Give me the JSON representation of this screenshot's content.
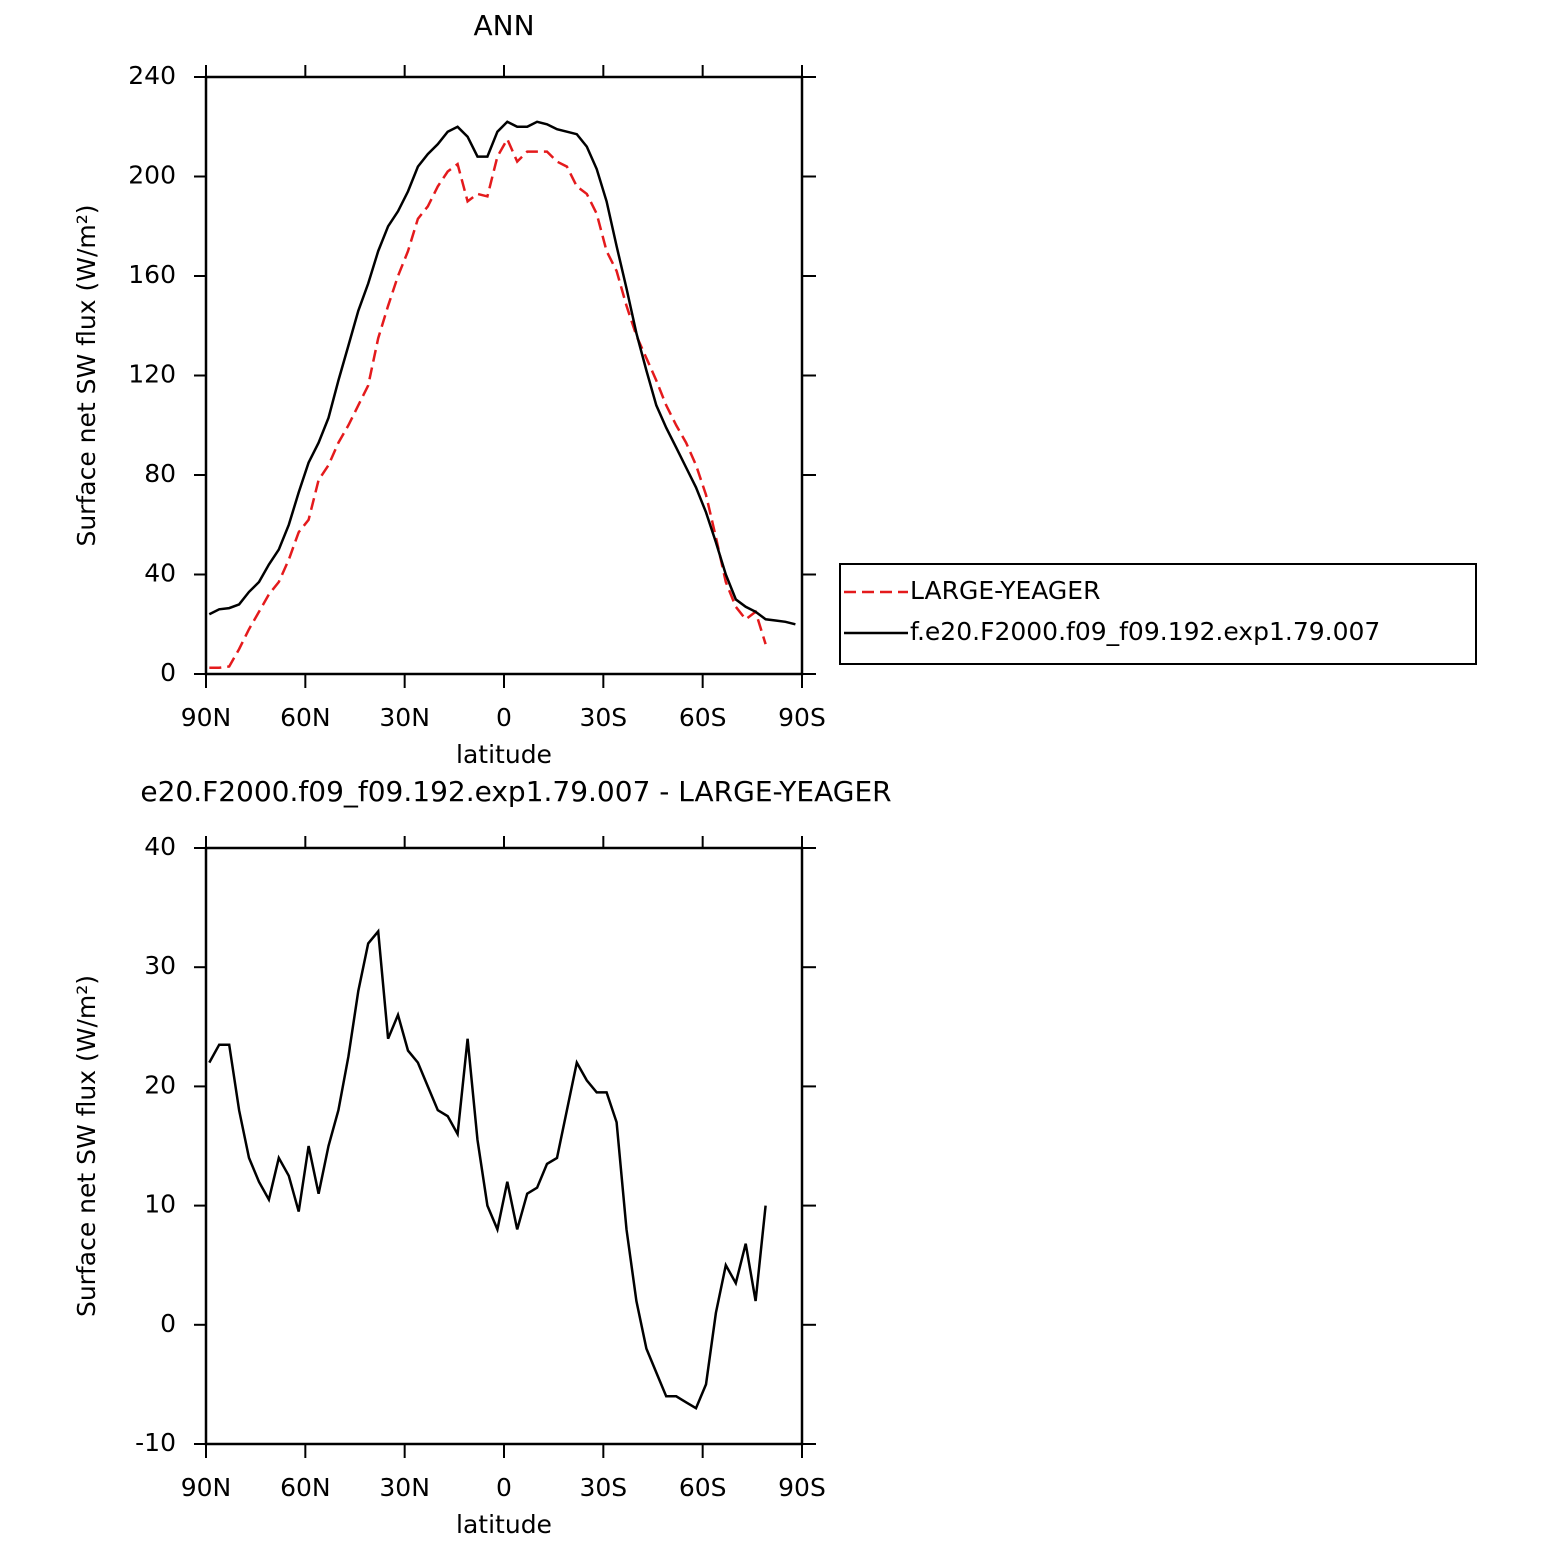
{
  "chart_data": [
    {
      "type": "line",
      "title": "ANN",
      "xlabel": "latitude",
      "ylabel": "Surface net SW flux (W/m²)",
      "x": [
        89,
        86,
        83,
        80,
        77,
        74,
        71,
        68,
        65,
        62,
        59,
        56,
        53,
        50,
        47,
        44,
        41,
        38,
        35,
        32,
        29,
        26,
        23,
        20,
        17,
        14,
        11,
        8,
        5,
        2,
        -1,
        -4,
        -7,
        -10,
        -13,
        -16,
        -19,
        -22,
        -25,
        -28,
        -31,
        -34,
        -37,
        -40,
        -43,
        -46,
        -49,
        -52,
        -55,
        -58,
        -61,
        -64,
        -67,
        -70,
        -73,
        -76,
        -79,
        -82,
        -85,
        -88
      ],
      "series": [
        {
          "name": "LARGE-YEAGER",
          "color": "#e41a1c",
          "dash": true,
          "values": [
            2.5,
            2.5,
            3,
            10,
            18,
            25,
            32,
            37,
            46,
            57,
            62,
            78,
            84,
            93,
            100,
            108,
            116,
            135,
            148,
            160,
            170,
            183,
            188,
            196,
            202,
            205,
            190,
            193,
            192,
            208,
            215,
            206,
            210,
            210,
            210,
            206,
            204,
            196,
            193,
            185,
            170,
            162,
            148,
            136,
            127,
            118,
            108,
            100,
            93,
            84,
            72,
            55,
            37,
            27,
            22,
            25,
            12,
            null,
            null,
            null
          ]
        },
        {
          "name": "f.e20.F2000.f09_f09.192.exp1.79.007",
          "color": "#000000",
          "dash": false,
          "values": [
            24,
            26,
            26.5,
            28,
            33,
            37,
            44,
            50,
            60,
            73,
            85,
            93,
            103,
            118,
            132,
            146,
            157,
            170,
            180,
            186,
            194,
            204,
            209,
            213,
            218,
            220,
            216,
            208,
            208,
            218,
            222,
            220,
            220,
            222,
            221,
            219,
            218,
            217,
            212,
            203,
            190,
            172,
            155,
            137,
            122,
            108,
            99,
            91,
            83,
            75,
            65,
            53,
            40,
            30,
            27,
            25,
            22,
            21.5,
            21,
            20
          ]
        }
      ],
      "xlim": [
        90,
        -90
      ],
      "ylim": [
        0,
        240
      ],
      "xticks": [
        {
          "value": 90,
          "label": "90N"
        },
        {
          "value": 60,
          "label": "60N"
        },
        {
          "value": 30,
          "label": "30N"
        },
        0,
        {
          "value": -30,
          "label": "30S"
        },
        {
          "value": -60,
          "label": "60S"
        },
        {
          "value": -90,
          "label": "90S"
        }
      ],
      "yticks": [
        0,
        40,
        80,
        120,
        160,
        200,
        240
      ],
      "legend": "right"
    },
    {
      "type": "line",
      "title": "e20.F2000.f09_f09.192.exp1.79.007 - LARGE-YEAGER",
      "xlabel": "latitude",
      "ylabel": "Surface net SW flux (W/m²)",
      "x": [
        89,
        86,
        83,
        80,
        77,
        74,
        71,
        68,
        65,
        62,
        59,
        56,
        53,
        50,
        47,
        44,
        41,
        38,
        35,
        32,
        29,
        26,
        23,
        20,
        17,
        14,
        11,
        8,
        5,
        2,
        -1,
        -4,
        -7,
        -10,
        -13,
        -16,
        -19,
        -22,
        -25,
        -28,
        -31,
        -34,
        -37,
        -40,
        -43,
        -46,
        -49,
        -52,
        -55,
        -58,
        -61,
        -64,
        -67,
        -70,
        -73,
        -76,
        -79,
        -82,
        -85,
        -88
      ],
      "series": [
        {
          "color": "#000000",
          "dash": false,
          "values": [
            22,
            23.5,
            23.5,
            18,
            14,
            12,
            10.5,
            14,
            12.5,
            9.5,
            15,
            11,
            15,
            18,
            22.5,
            28,
            32,
            33,
            24,
            26,
            23,
            22,
            20,
            18,
            17.5,
            16,
            24,
            15.5,
            10,
            8,
            12,
            8,
            11,
            11.5,
            13.5,
            14,
            18,
            22,
            20.5,
            19.5,
            19.5,
            17,
            8,
            2,
            -2,
            -4,
            -6,
            -6,
            -6.5,
            -7,
            -5,
            1,
            5,
            3.5,
            6.8,
            2,
            10,
            null,
            null,
            null
          ]
        }
      ],
      "xlim": [
        90,
        -90
      ],
      "ylim": [
        -10,
        40
      ],
      "xticks": [
        {
          "value": 90,
          "label": "90N"
        },
        {
          "value": 60,
          "label": "60N"
        },
        {
          "value": 30,
          "label": "30N"
        },
        0,
        {
          "value": -30,
          "label": "30S"
        },
        {
          "value": -60,
          "label": "60S"
        },
        {
          "value": -90,
          "label": "90S"
        }
      ],
      "yticks": [
        -10,
        0,
        10,
        20,
        30,
        40
      ]
    }
  ]
}
